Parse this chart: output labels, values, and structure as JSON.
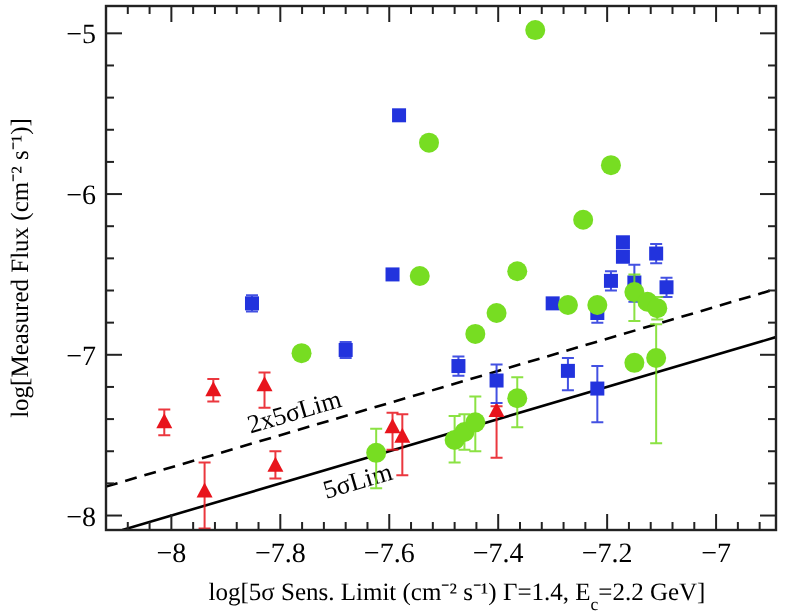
{
  "chart_data": {
    "type": "scatter",
    "xlabel": "log[5σ Sens. Limit (cm⁻² s⁻¹) Γ=1.4, E$_{c}$=2.2 GeV]",
    "ylabel": "log[Measured Flux (cm⁻² s⁻¹)]",
    "xlim": [
      -8.12,
      -6.89
    ],
    "ylim": [
      -8.09,
      -4.83
    ],
    "xticks": [
      {
        "value": -8.08,
        "label": null
      },
      {
        "value": -8.04,
        "label": null
      },
      -8,
      {
        "value": -7.96,
        "label": null
      },
      {
        "value": -7.92,
        "label": null
      },
      {
        "value": -7.88,
        "label": null
      },
      {
        "value": -7.84,
        "label": null
      },
      -7.8,
      {
        "value": -7.76,
        "label": null
      },
      {
        "value": -7.72,
        "label": null
      },
      {
        "value": -7.68,
        "label": null
      },
      {
        "value": -7.64,
        "label": null
      },
      -7.6,
      {
        "value": -7.56,
        "label": null
      },
      {
        "value": -7.52,
        "label": null
      },
      {
        "value": -7.48,
        "label": null
      },
      {
        "value": -7.44,
        "label": null
      },
      -7.4,
      {
        "value": -7.36,
        "label": null
      },
      {
        "value": -7.32,
        "label": null
      },
      {
        "value": -7.28,
        "label": null
      },
      {
        "value": -7.24,
        "label": null
      },
      -7.2,
      {
        "value": -7.16,
        "label": null
      },
      {
        "value": -7.12,
        "label": null
      },
      {
        "value": -7.08,
        "label": null
      },
      {
        "value": -7.04,
        "label": null
      },
      -7,
      {
        "value": -6.96,
        "label": null
      },
      {
        "value": -6.92,
        "label": null
      }
    ],
    "yticks": [
      {
        "value": -8,
        "label": "−8"
      },
      {
        "value": -7.8,
        "label": null
      },
      {
        "value": -7.6,
        "label": null
      },
      {
        "value": -7.4,
        "label": null
      },
      {
        "value": -7.2,
        "label": null
      },
      {
        "value": -7,
        "label": "−7"
      },
      {
        "value": -6.8,
        "label": null
      },
      {
        "value": -6.6,
        "label": null
      },
      {
        "value": -6.4,
        "label": null
      },
      {
        "value": -6.2,
        "label": null
      },
      {
        "value": -6,
        "label": "−6"
      },
      {
        "value": -5.8,
        "label": null
      },
      {
        "value": -5.6,
        "label": null
      },
      {
        "value": -5.4,
        "label": null
      },
      {
        "value": -5.2,
        "label": null
      },
      {
        "value": -5,
        "label": "−5"
      }
    ],
    "grid": false,
    "series": [
      {
        "name": "2x5σLim",
        "type": "line",
        "line_style": "dashed",
        "marker": "none",
        "color": "#000000",
        "x": [
          -8.12,
          -6.89
        ],
        "values": [
          -7.82,
          -6.59
        ]
      },
      {
        "name": "5σLim",
        "type": "line",
        "line_style": "solid",
        "marker": "none",
        "color": "#000000",
        "x": [
          -8.09,
          -6.89
        ],
        "values": [
          -8.09,
          -6.89
        ]
      },
      {
        "marker": "triangle",
        "color": "#e8141c",
        "x": [
          -8.013,
          -7.939,
          -7.923,
          -7.829,
          -7.809,
          -7.594,
          -7.576,
          -7.403
        ],
        "values": [
          -7.42,
          -7.85,
          -7.22,
          -7.19,
          -7.69,
          -7.45,
          -7.51,
          -7.35
        ],
        "errors": [
          0.08,
          [
            -8.08,
            -7.67
          ],
          0.07,
          [
            -7.33,
            -7.11
          ],
          [
            -7.77,
            -7.6
          ],
          [
            -7.59,
            -7.36
          ],
          [
            -7.75,
            -7.37
          ],
          [
            -7.64,
            -7.32
          ]
        ]
      },
      {
        "marker": "square",
        "color": "#2233dd",
        "x": [
          -7.582,
          -7.852,
          -7.594,
          -7.68,
          -7.473,
          -7.403,
          -7.3,
          -7.272,
          -7.218,
          -7.218,
          -7.193,
          -7.171,
          -7.171,
          -7.15,
          -7.11,
          -7.091
        ],
        "values": [
          -5.51,
          -6.68,
          -6.5,
          -6.97,
          -7.07,
          -7.16,
          -6.68,
          -7.1,
          -7.21,
          -6.74,
          -6.54,
          -6.3,
          -6.39,
          -6.55,
          -6.37,
          -6.58
        ],
        "errors": [
          null,
          0.05,
          null,
          0.05,
          0.06,
          [
            -7.3,
            -7.06
          ],
          null,
          [
            -7.22,
            -7.02
          ],
          [
            -7.42,
            -7.07
          ],
          0.06,
          0.06,
          null,
          null,
          [
            -6.67,
            -6.44
          ],
          0.06,
          0.06
        ]
      },
      {
        "marker": "circle",
        "color": "#77dd22",
        "x": [
          -7.527,
          -7.544,
          -7.761,
          -7.624,
          -7.332,
          -7.48,
          -7.462,
          -7.442,
          -7.442,
          -7.403,
          -7.365,
          -7.365,
          -7.272,
          -7.244,
          -7.218,
          -7.193,
          -7.15,
          -7.126,
          -7.108,
          -7.15,
          -7.11
        ],
        "values": [
          -5.68,
          -6.51,
          -6.99,
          -7.61,
          -4.98,
          -7.53,
          -7.48,
          -7.42,
          -6.87,
          -6.74,
          -6.48,
          -7.27,
          -6.69,
          -6.16,
          -6.69,
          -5.82,
          -6.61,
          -6.67,
          -6.71,
          -7.05,
          -7.02
        ],
        "errors": [
          null,
          null,
          0.04,
          [
            -7.83,
            -7.46
          ],
          null,
          [
            -7.67,
            -7.38
          ],
          [
            -7.59,
            -7.37
          ],
          [
            -7.6,
            -7.26
          ],
          0.04,
          null,
          null,
          [
            -7.45,
            -7.14
          ],
          0.04,
          null,
          0.04,
          null,
          [
            -6.79,
            -6.5
          ],
          null,
          [
            -6.78,
            -6.64
          ],
          0.04,
          [
            -7.55,
            -6.81
          ]
        ]
      }
    ]
  }
}
